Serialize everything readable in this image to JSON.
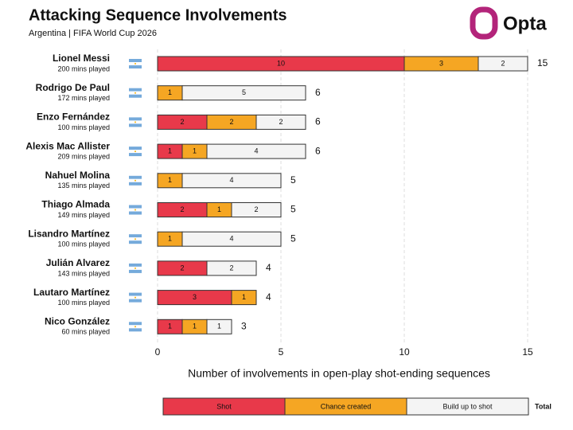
{
  "chart_data": {
    "type": "stacked-barh",
    "title": "Attacking Sequence Involvements",
    "subtitle": "Argentina | FIFA World Cup 2026",
    "brand": "Opta",
    "xlabel": "Number of involvements in open-play shot-ending sequences",
    "categories": [
      "Lionel Messi",
      "Rodrigo De Paul",
      "Enzo Fernández",
      "Alexis Mac Allister",
      "Nahuel Molina",
      "Thiago Almada",
      "Lisandro Martínez",
      "Julián Alvarez",
      "Lautaro Martínez",
      "Nico González"
    ],
    "category_subtitles": [
      "200 mins played",
      "172 mins played",
      "100 mins played",
      "209 mins played",
      "135 mins played",
      "149 mins played",
      "100 mins played",
      "143 mins played",
      "100 mins played",
      "60 mins played"
    ],
    "series": [
      {
        "name": "Shot",
        "color": "#e8394a",
        "values": [
          10,
          null,
          2,
          1,
          null,
          2,
          null,
          2,
          3,
          1
        ]
      },
      {
        "name": "Chance created",
        "color": "#f5a623",
        "values": [
          3,
          1,
          2,
          1,
          1,
          1,
          1,
          null,
          1,
          1
        ]
      },
      {
        "name": "Build up to shot",
        "color": "#f4f4f4",
        "values": [
          2,
          5,
          2,
          4,
          4,
          2,
          4,
          2,
          null,
          1
        ]
      }
    ],
    "totals_label": "Total",
    "totals": [
      15,
      6,
      6,
      6,
      5,
      5,
      5,
      4,
      4,
      3
    ],
    "xlim": [
      0,
      15
    ],
    "xticks": [
      0,
      5,
      10,
      15
    ],
    "grid": true
  }
}
